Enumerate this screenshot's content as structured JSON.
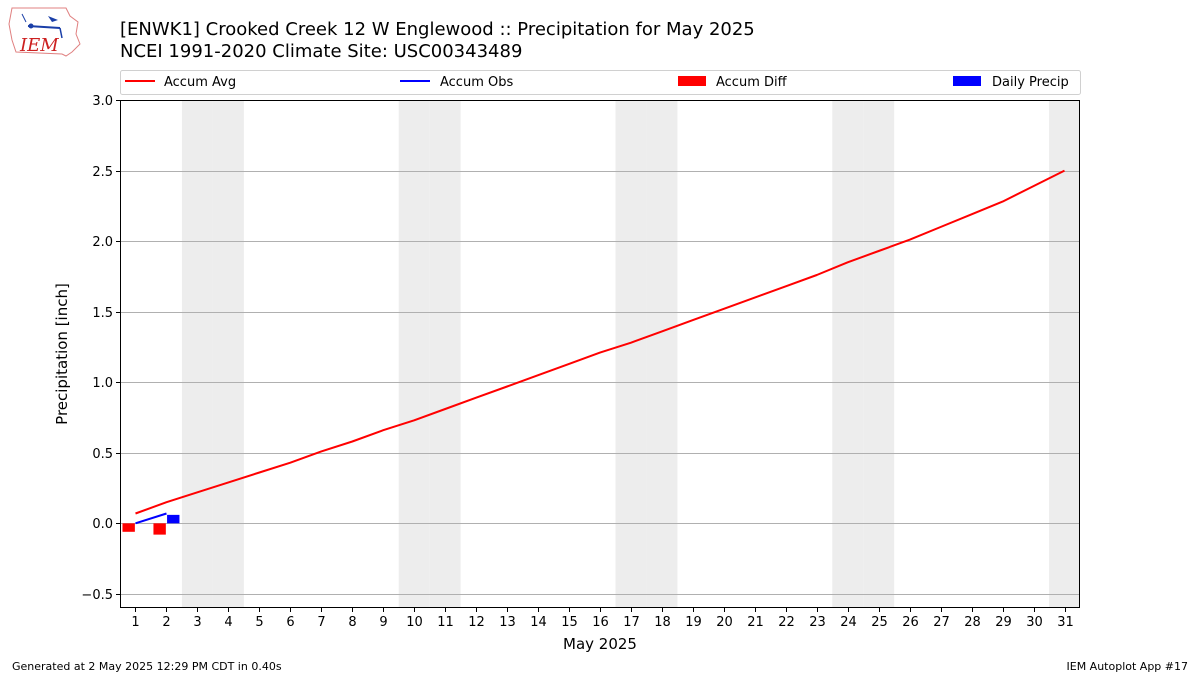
{
  "header": {
    "logo_text": "IEM",
    "title_line1": "[ENWK1] Crooked Creek 12 W Englewood :: Precipitation for May 2025",
    "title_line2": "NCEI 1991-2020 Climate Site: USC00343489"
  },
  "footer": {
    "generated": "Generated at 2 May 2025 12:29 PM CDT in 0.40s",
    "app": "IEM Autoplot App #17"
  },
  "colors": {
    "accum_avg": "#ff0000",
    "accum_obs": "#0000ff",
    "accum_diff": "#ff0000",
    "daily_precip": "#0000ff",
    "weekend_band": "#ededed",
    "grid": "#b0b0b0"
  },
  "chart_data": {
    "type": "line",
    "title": "[ENWK1] Crooked Creek 12 W Englewood :: Precipitation for May 2025",
    "subtitle": "NCEI 1991-2020 Climate Site: USC00343489",
    "xlabel": "May 2025",
    "ylabel": "Precipitation [inch]",
    "xlim": [
      0.5,
      31.5
    ],
    "ylim": [
      -0.6,
      3.0
    ],
    "y_ticks": [
      -0.5,
      0.0,
      0.5,
      1.0,
      1.5,
      2.0,
      2.5,
      3.0
    ],
    "y_tick_labels": [
      "−0.5",
      "0.0",
      "0.5",
      "1.0",
      "1.5",
      "2.0",
      "2.5",
      "3.0"
    ],
    "x_ticks": [
      1,
      2,
      3,
      4,
      5,
      6,
      7,
      8,
      9,
      10,
      11,
      12,
      13,
      14,
      15,
      16,
      17,
      18,
      19,
      20,
      21,
      22,
      23,
      24,
      25,
      26,
      27,
      28,
      29,
      30,
      31
    ],
    "grid": "horizontal",
    "legend_placement": "top",
    "legend": [
      "Accum Avg",
      "Accum Obs",
      "Accum Diff",
      "Daily Precip"
    ],
    "weekend_days": [
      3,
      4,
      10,
      11,
      17,
      18,
      24,
      25,
      31
    ],
    "series": [
      {
        "name": "Accum Avg",
        "type": "line",
        "x": [
          1,
          2,
          3,
          4,
          5,
          6,
          7,
          8,
          9,
          10,
          11,
          12,
          13,
          14,
          15,
          16,
          17,
          18,
          19,
          20,
          21,
          22,
          23,
          24,
          25,
          26,
          27,
          28,
          29,
          30,
          31
        ],
        "values": [
          0.07,
          0.15,
          0.22,
          0.29,
          0.36,
          0.43,
          0.51,
          0.58,
          0.66,
          0.73,
          0.81,
          0.89,
          0.97,
          1.05,
          1.13,
          1.21,
          1.28,
          1.36,
          1.44,
          1.52,
          1.6,
          1.68,
          1.76,
          1.85,
          1.93,
          2.01,
          2.1,
          2.19,
          2.28,
          2.39,
          2.5
        ]
      },
      {
        "name": "Accum Obs",
        "type": "line",
        "x": [
          1,
          2
        ],
        "values": [
          0.0,
          0.07
        ]
      },
      {
        "name": "Accum Diff",
        "type": "bar",
        "x": [
          1,
          2
        ],
        "values": [
          -0.06,
          -0.08
        ]
      },
      {
        "name": "Daily Precip",
        "type": "bar",
        "x": [
          1,
          2
        ],
        "values": [
          0.0,
          0.06
        ]
      }
    ]
  }
}
